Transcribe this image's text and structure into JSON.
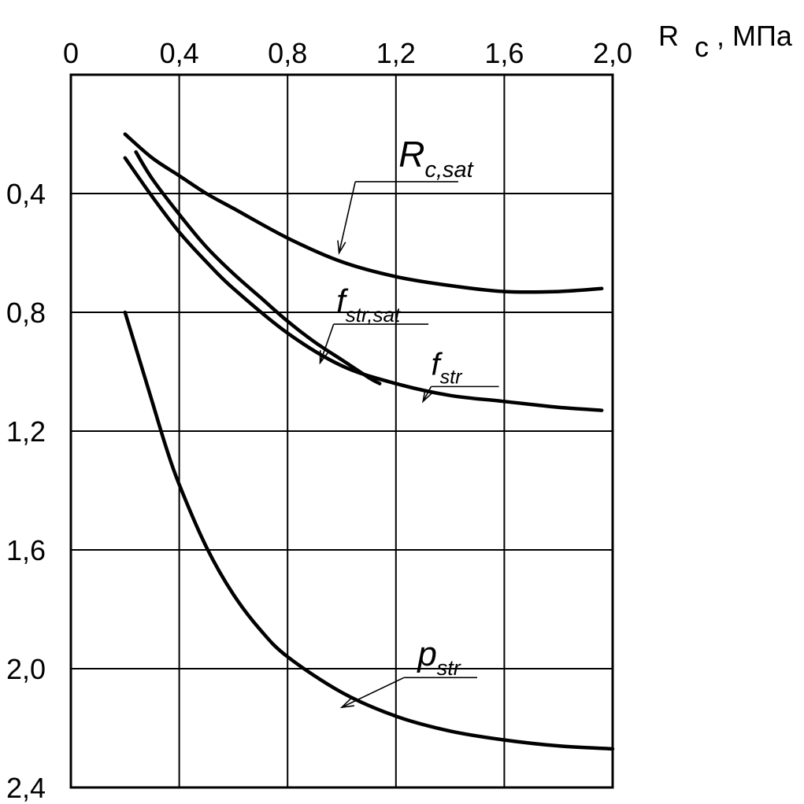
{
  "chart_data": {
    "type": "line",
    "title": "",
    "xlabel": {
      "main": "R",
      "sub": "c",
      "unit": ", МПа"
    },
    "ylabel": "",
    "x_axis_position": "top",
    "y_axis_inverted": true,
    "xlim": [
      0,
      2.0
    ],
    "ylim": [
      0,
      2.4
    ],
    "grid": true,
    "x_ticks": [
      0,
      0.4,
      0.8,
      1.2,
      1.6,
      2.0
    ],
    "x_tick_labels": [
      "0",
      "0,4",
      "0,8",
      "1,2",
      "1,6",
      "2,0"
    ],
    "y_ticks": [
      0.4,
      0.8,
      1.2,
      1.6,
      2.0,
      2.4
    ],
    "y_tick_labels": [
      "0,4",
      "0,8",
      "1,2",
      "1,6",
      "2,0",
      "2,4"
    ],
    "series": [
      {
        "name_main": "R",
        "name_sub": "c,sat",
        "points": [
          [
            0.2,
            0.2
          ],
          [
            0.3,
            0.28
          ],
          [
            0.4,
            0.34
          ],
          [
            0.5,
            0.4
          ],
          [
            0.6,
            0.45
          ],
          [
            0.8,
            0.55
          ],
          [
            1.0,
            0.63
          ],
          [
            1.2,
            0.68
          ],
          [
            1.4,
            0.71
          ],
          [
            1.6,
            0.73
          ],
          [
            1.8,
            0.73
          ],
          [
            1.96,
            0.72
          ]
        ],
        "label_value": [
          1.21,
          0.31
        ],
        "label_fontsize": 46,
        "label_line_to": [
          1.43,
          0.36
        ],
        "leader_from": [
          1.05,
          0.36
        ],
        "leader_to": [
          0.99,
          0.6
        ]
      },
      {
        "name_main": "f",
        "name_sub": "str,sat",
        "points": [
          [
            0.24,
            0.26
          ],
          [
            0.3,
            0.35
          ],
          [
            0.4,
            0.47
          ],
          [
            0.5,
            0.58
          ],
          [
            0.6,
            0.67
          ],
          [
            0.7,
            0.75
          ],
          [
            0.8,
            0.83
          ],
          [
            0.9,
            0.9
          ],
          [
            1.0,
            0.96
          ],
          [
            1.1,
            1.02
          ],
          [
            1.14,
            1.04
          ]
        ],
        "label_value": [
          0.98,
          0.8
        ],
        "label_fontsize": 42,
        "label_line_to": [
          1.32,
          0.84
        ],
        "leader_from": [
          0.97,
          0.84
        ],
        "leader_to": [
          0.92,
          0.97
        ]
      },
      {
        "name_main": "f",
        "name_sub": "str",
        "points": [
          [
            0.2,
            0.28
          ],
          [
            0.3,
            0.41
          ],
          [
            0.4,
            0.53
          ],
          [
            0.5,
            0.63
          ],
          [
            0.6,
            0.72
          ],
          [
            0.8,
            0.87
          ],
          [
            1.0,
            0.98
          ],
          [
            1.2,
            1.04
          ],
          [
            1.4,
            1.08
          ],
          [
            1.6,
            1.1
          ],
          [
            1.8,
            1.12
          ],
          [
            1.96,
            1.13
          ]
        ],
        "label_value": [
          1.33,
          1.01
        ],
        "label_fontsize": 40,
        "label_line_to": [
          1.58,
          1.05
        ],
        "leader_from": [
          1.33,
          1.05
        ],
        "leader_to": [
          1.3,
          1.1
        ]
      },
      {
        "name_main": "p",
        "name_sub": "str",
        "points": [
          [
            0.2,
            0.8
          ],
          [
            0.25,
            0.95
          ],
          [
            0.3,
            1.1
          ],
          [
            0.35,
            1.25
          ],
          [
            0.4,
            1.38
          ],
          [
            0.5,
            1.59
          ],
          [
            0.6,
            1.75
          ],
          [
            0.7,
            1.87
          ],
          [
            0.8,
            1.96
          ],
          [
            1.0,
            2.08
          ],
          [
            1.2,
            2.16
          ],
          [
            1.4,
            2.21
          ],
          [
            1.6,
            2.24
          ],
          [
            1.8,
            2.26
          ],
          [
            2.0,
            2.27
          ]
        ],
        "label_value": [
          1.28,
          1.99
        ],
        "label_fontsize": 44,
        "label_line_to": [
          1.5,
          2.03
        ],
        "leader_from": [
          1.23,
          2.03
        ],
        "leader_to": [
          1.0,
          2.13
        ]
      }
    ]
  }
}
